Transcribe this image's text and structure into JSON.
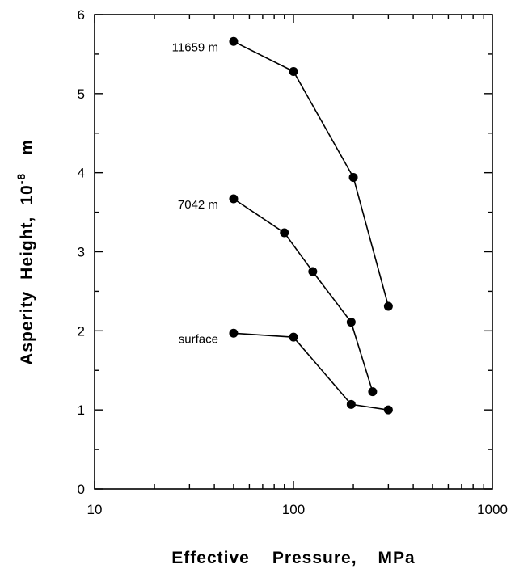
{
  "chart_data": {
    "type": "line",
    "title": "",
    "xlabel_parts": [
      "Effective",
      "Pressure,",
      "MPa"
    ],
    "ylabel_parts": [
      "Asperity",
      "Height,",
      "10",
      "-8",
      "m"
    ],
    "xscale": "log",
    "xlim": [
      10,
      1000
    ],
    "ylim": [
      0,
      6
    ],
    "x_tick_labels": [
      "10",
      "100",
      "1000"
    ],
    "y_tick_labels": [
      "0",
      "1",
      "2",
      "3",
      "4",
      "5",
      "6"
    ],
    "grid": false,
    "legend": "none (series labeled directly on plot)",
    "marker": "filled circle",
    "series": [
      {
        "name": "11659  m",
        "x": [
          50,
          100,
          200,
          300
        ],
        "y": [
          5.66,
          5.28,
          3.94,
          2.31
        ]
      },
      {
        "name": "7042  m",
        "x": [
          50,
          90,
          125,
          195,
          250
        ],
        "y": [
          3.67,
          3.24,
          2.75,
          2.11,
          1.23
        ]
      },
      {
        "name": "surface",
        "x": [
          50,
          100,
          195,
          300
        ],
        "y": [
          1.97,
          1.92,
          1.07,
          1.0
        ]
      }
    ]
  }
}
